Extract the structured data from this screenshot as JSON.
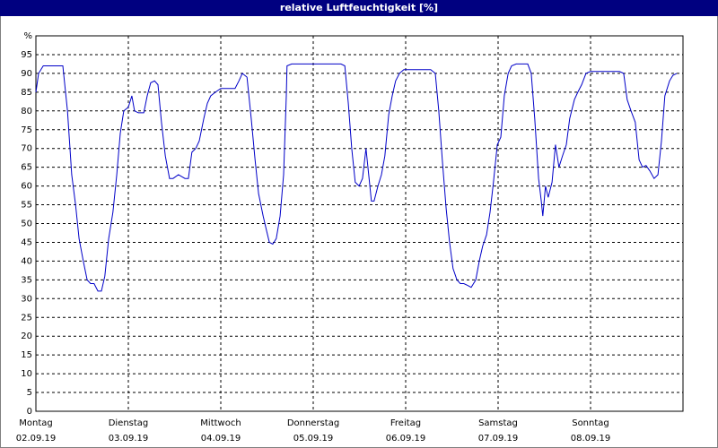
{
  "chart_data": {
    "type": "line",
    "title": "relative Luftfeuchtigkeit [%]",
    "color": "#0000c8",
    "grid": true,
    "xlim": [
      0,
      168
    ],
    "xticks": [
      {
        "value": 0,
        "label": "Montag",
        "date": "02.09.19"
      },
      {
        "value": 24,
        "label": "Dienstag",
        "date": "03.09.19"
      },
      {
        "value": 48,
        "label": "Mittwoch",
        "date": "04.09.19"
      },
      {
        "value": 72,
        "label": "Donnerstag",
        "date": "05.09.19"
      },
      {
        "value": 96,
        "label": "Freitag",
        "date": "06.09.19"
      },
      {
        "value": 120,
        "label": "Samstag",
        "date": "07.09.19"
      },
      {
        "value": 144,
        "label": "Sonntag",
        "date": "08.09.19"
      }
    ],
    "ylim": [
      0,
      100
    ],
    "yticks": [
      0,
      5,
      10,
      15,
      20,
      25,
      30,
      35,
      40,
      45,
      50,
      55,
      60,
      65,
      70,
      75,
      80,
      85,
      90,
      95,
      {
        "value": 100,
        "label": "%"
      }
    ],
    "x": [
      0,
      0.7,
      1.9,
      7.0,
      8.2,
      9.3,
      10.3,
      11.2,
      12.3,
      13.3,
      14.2,
      15.1,
      16.1,
      17.0,
      17.9,
      18.9,
      20.0,
      21.0,
      21.9,
      22.8,
      24.0,
      24.9,
      25.6,
      26.6,
      28.0,
      28.9,
      29.8,
      30.8,
      31.7,
      32.6,
      33.6,
      34.7,
      35.6,
      37.0,
      38.7,
      39.6,
      40.5,
      41.5,
      42.4,
      43.6,
      44.5,
      45.4,
      46.6,
      48.0,
      49.4,
      51.7,
      52.7,
      53.6,
      54.8,
      55.9,
      56.9,
      57.8,
      59.0,
      59.9,
      60.6,
      61.5,
      62.4,
      63.4,
      64.3,
      65.0,
      65.2,
      66.4,
      79.2,
      80.2,
      81.1,
      82.0,
      82.9,
      83.9,
      84.8,
      85.7,
      86.7,
      87.1,
      87.8,
      88.8,
      89.7,
      90.6,
      91.6,
      92.5,
      93.4,
      94.4,
      95.5,
      102.5,
      103.7,
      104.6,
      105.5,
      106.5,
      107.4,
      108.3,
      109.3,
      110.2,
      111.1,
      112.1,
      113.0,
      114.2,
      115.1,
      116.0,
      117.0,
      117.9,
      118.8,
      119.8,
      120.7,
      121.6,
      122.6,
      123.5,
      124.7,
      127.7,
      128.6,
      129.5,
      130.5,
      131.2,
      131.6,
      132.3,
      133.0,
      134.0,
      134.9,
      135.8,
      136.7,
      137.7,
      138.6,
      139.8,
      140.7,
      141.7,
      142.8,
      144.0,
      151.5,
      152.6,
      153.5,
      154.5,
      155.6,
      156.6,
      157.5,
      158.4,
      159.4,
      160.5,
      161.5,
      162.4,
      163.3,
      164.5,
      165.4,
      166.4
    ],
    "values": [
      85,
      90,
      92,
      92,
      80,
      63,
      55,
      46,
      40,
      35,
      34,
      34,
      32,
      32,
      36,
      46,
      53,
      63,
      74,
      80,
      81,
      84,
      80,
      79.5,
      79.5,
      84,
      87.5,
      88,
      87,
      77,
      68,
      62,
      62,
      63,
      62,
      62,
      69,
      70,
      72,
      78,
      82,
      84,
      85,
      86,
      86,
      86,
      88,
      90,
      89,
      78,
      67,
      58,
      52,
      48,
      45,
      44.5,
      46,
      52,
      63,
      84,
      92,
      92.5,
      92.5,
      92,
      82,
      70,
      61,
      60,
      62,
      70,
      60,
      56,
      56,
      60,
      63,
      68,
      79,
      84,
      88,
      90,
      91,
      91,
      90,
      80,
      67,
      54,
      45,
      38,
      35,
      34,
      34,
      33.5,
      33,
      35,
      40,
      44,
      47,
      53,
      61,
      71,
      73,
      84,
      90,
      92,
      92.5,
      92.5,
      90,
      78,
      62,
      56,
      52,
      60,
      57,
      61,
      71,
      65,
      68,
      71,
      78,
      83,
      85,
      87,
      90,
      90.5,
      90.5,
      90,
      83,
      80,
      77,
      67,
      65,
      65.5,
      64,
      62,
      63,
      72,
      84,
      88,
      89.5,
      90
    ]
  }
}
